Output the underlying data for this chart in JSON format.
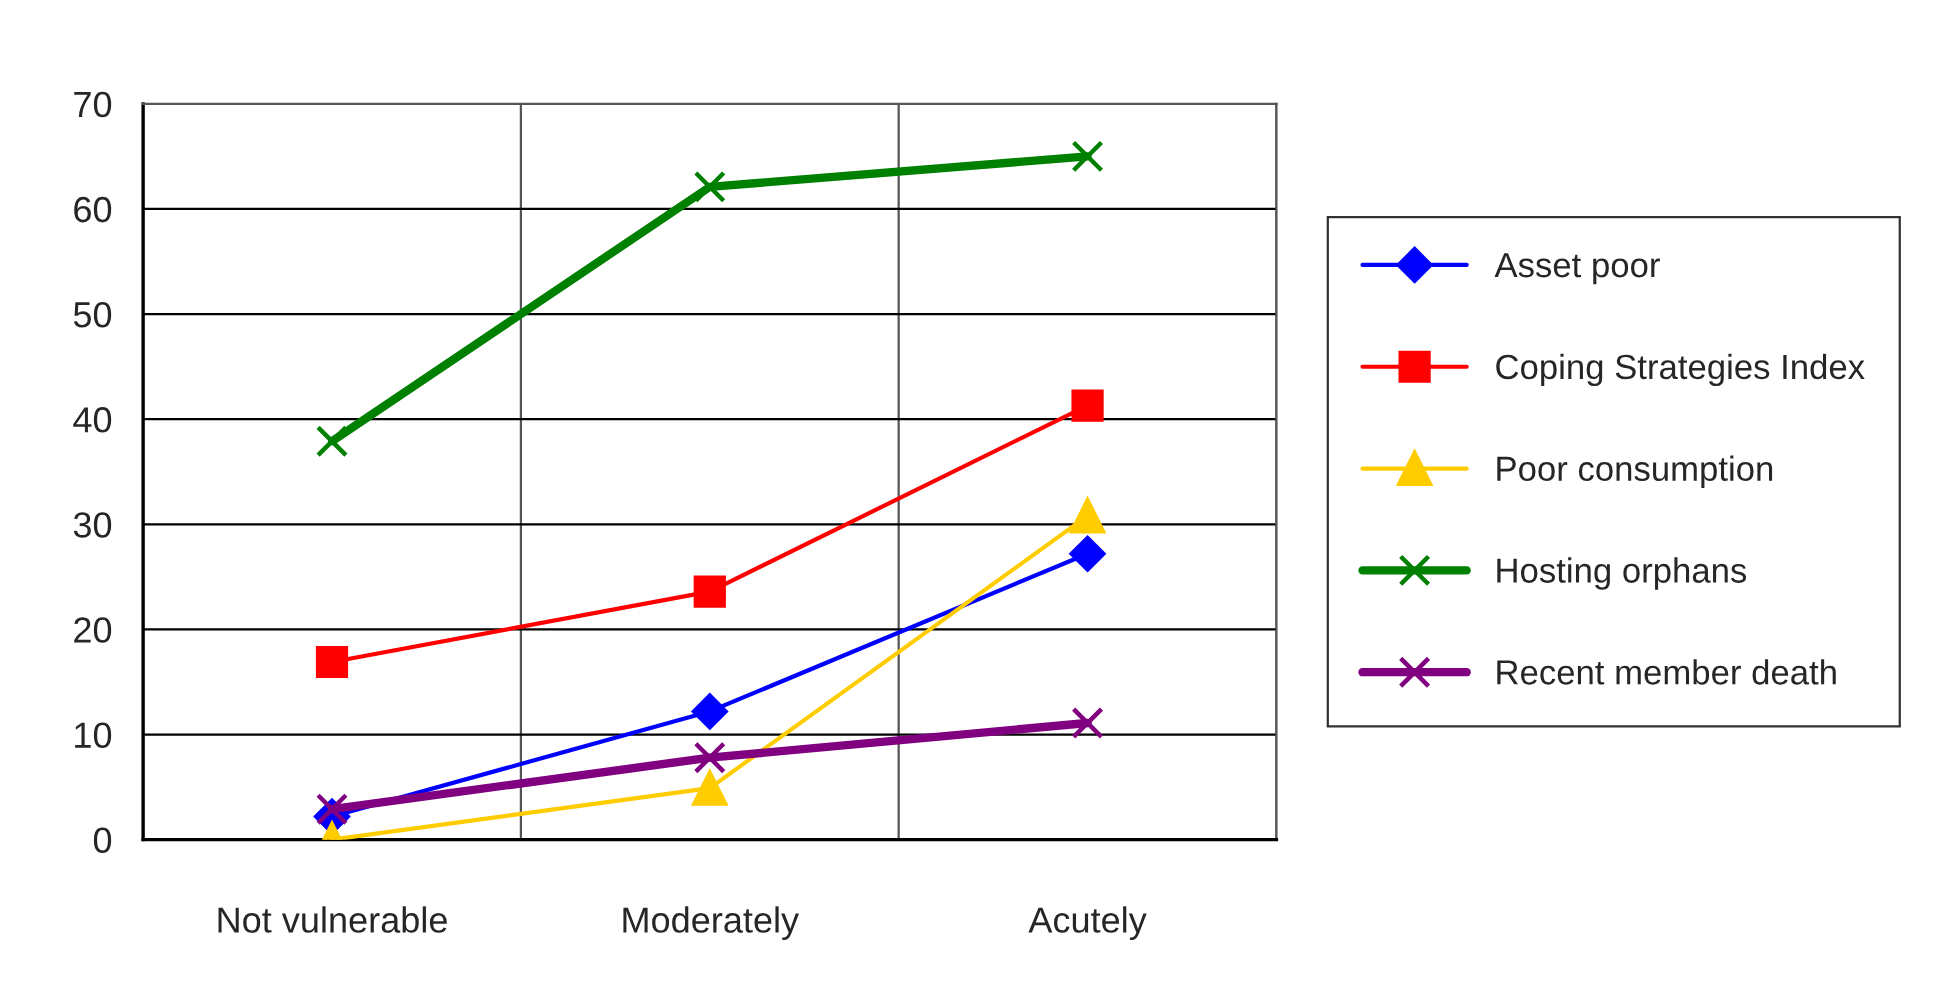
{
  "chart_data": {
    "type": "line",
    "categories": [
      "Not vulnerable",
      "Moderately",
      "Acutely"
    ],
    "series": [
      {
        "name": "Asset poor",
        "color": "#0000ff",
        "marker": "diamond",
        "values": [
          2.2,
          12.2,
          27.2
        ]
      },
      {
        "name": "Coping Strategies Index",
        "color": "#ff0000",
        "marker": "square",
        "values": [
          16.9,
          23.6,
          41.3
        ]
      },
      {
        "name": "Poor consumption",
        "color": "#ffcc00",
        "marker": "triangle",
        "values": [
          0,
          4.9,
          30.8
        ]
      },
      {
        "name": "Hosting orphans",
        "color": "#008000",
        "marker": "cross",
        "values": [
          37.9,
          62.1,
          65
        ]
      },
      {
        "name": "Recent member death",
        "color": "#800080",
        "marker": "cross",
        "values": [
          2.9,
          7.8,
          11.1
        ]
      }
    ],
    "ylim": [
      0,
      70
    ],
    "yticks": [
      0,
      10,
      20,
      30,
      40,
      50,
      60,
      70
    ],
    "grid": true,
    "legend": "right",
    "line_style": "solid"
  }
}
